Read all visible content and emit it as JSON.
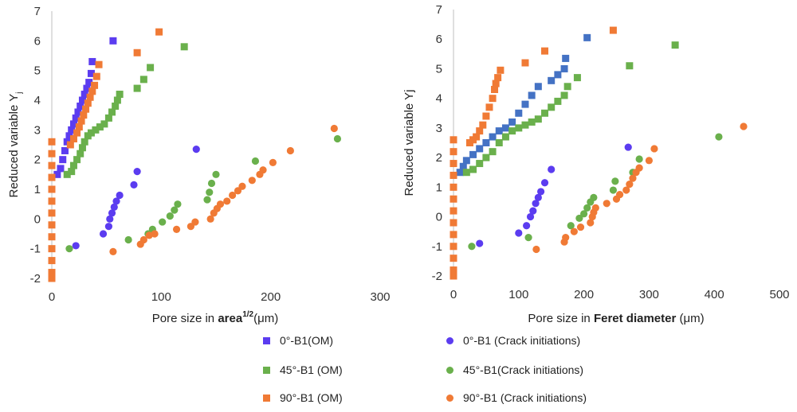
{
  "chart_data": [
    {
      "type": "scatter",
      "xlabel_prefix": "Pore size in ",
      "xlabel_bold": "area",
      "xlabel_sup": "1/2",
      "xlabel_suffix": "(μm)",
      "ylabel_main": "Reduced variable Y",
      "ylabel_sub": "j",
      "xlim": [
        0,
        300
      ],
      "ylim": [
        -2,
        7
      ],
      "xticks": [
        "0",
        "100",
        "200",
        "300"
      ],
      "yticks": [
        "-2",
        "-1",
        "0",
        "1",
        "2",
        "3",
        "4",
        "5",
        "6",
        "7"
      ],
      "series": [
        {
          "name": "0°-B1(OM)",
          "marker": "square",
          "color": "#5b3cf0",
          "points": [
            [
              5,
              1.5
            ],
            [
              8,
              1.7
            ],
            [
              10,
              2.0
            ],
            [
              12,
              2.3
            ],
            [
              14,
              2.6
            ],
            [
              16,
              2.8
            ],
            [
              18,
              3.0
            ],
            [
              20,
              3.2
            ],
            [
              22,
              3.4
            ],
            [
              24,
              3.6
            ],
            [
              26,
              3.8
            ],
            [
              28,
              4.0
            ],
            [
              30,
              4.2
            ],
            [
              32,
              4.4
            ],
            [
              34,
              4.6
            ],
            [
              36,
              4.9
            ],
            [
              37,
              5.3
            ],
            [
              56,
              6.0
            ]
          ]
        },
        {
          "name": "45°-B1 (OM)",
          "marker": "square",
          "color": "#6ab04c",
          "points": [
            [
              14,
              1.5
            ],
            [
              18,
              1.6
            ],
            [
              20,
              1.8
            ],
            [
              23,
              2.0
            ],
            [
              26,
              2.2
            ],
            [
              28,
              2.4
            ],
            [
              30,
              2.6
            ],
            [
              33,
              2.8
            ],
            [
              36,
              2.9
            ],
            [
              40,
              3.0
            ],
            [
              44,
              3.1
            ],
            [
              48,
              3.2
            ],
            [
              52,
              3.4
            ],
            [
              55,
              3.6
            ],
            [
              58,
              3.8
            ],
            [
              60,
              4.0
            ],
            [
              62,
              4.2
            ],
            [
              78,
              4.4
            ],
            [
              84,
              4.7
            ],
            [
              90,
              5.1
            ],
            [
              121,
              5.8
            ]
          ]
        },
        {
          "name": "90°-B1 (OM)",
          "marker": "square",
          "color": "#f07a35",
          "points": [
            [
              17,
              2.5
            ],
            [
              20,
              2.7
            ],
            [
              23,
              2.9
            ],
            [
              25,
              3.1
            ],
            [
              27,
              3.3
            ],
            [
              29,
              3.5
            ],
            [
              31,
              3.7
            ],
            [
              33,
              3.9
            ],
            [
              35,
              4.1
            ],
            [
              37,
              4.3
            ],
            [
              39,
              4.5
            ],
            [
              41,
              4.8
            ],
            [
              43,
              5.2
            ],
            [
              78,
              5.6
            ],
            [
              98,
              6.3
            ],
            [
              0,
              2.6
            ],
            [
              0,
              2.2
            ],
            [
              0,
              1.8
            ],
            [
              0,
              1.4
            ],
            [
              0,
              1.0
            ],
            [
              0,
              0.6
            ],
            [
              0,
              0.2
            ],
            [
              0,
              -0.2
            ],
            [
              0,
              -0.6
            ],
            [
              0,
              -1.0
            ],
            [
              0,
              -1.4
            ],
            [
              0,
              -1.8
            ],
            [
              0,
              -2.0
            ]
          ]
        },
        {
          "name": "0°-B1 (Crack initiations)",
          "marker": "circle",
          "color": "#5b3cf0",
          "points": [
            [
              22,
              -0.9
            ],
            [
              47,
              -0.5
            ],
            [
              52,
              -0.25
            ],
            [
              53,
              0
            ],
            [
              55,
              0.2
            ],
            [
              57,
              0.4
            ],
            [
              59,
              0.6
            ],
            [
              62,
              0.8
            ],
            [
              75,
              1.15
            ],
            [
              78,
              1.6
            ],
            [
              132,
              2.35
            ]
          ]
        },
        {
          "name": "45°-B1(Crack initiations)",
          "marker": "circle",
          "color": "#6ab04c",
          "points": [
            [
              16,
              -1.0
            ],
            [
              70,
              -0.7
            ],
            [
              88,
              -0.5
            ],
            [
              92,
              -0.35
            ],
            [
              101,
              -0.1
            ],
            [
              108,
              0.1
            ],
            [
              112,
              0.3
            ],
            [
              115,
              0.5
            ],
            [
              142,
              0.65
            ],
            [
              144,
              0.9
            ],
            [
              146,
              1.2
            ],
            [
              150,
              1.5
            ],
            [
              186,
              1.95
            ],
            [
              261,
              2.7
            ]
          ]
        },
        {
          "name": "90°-B1 (Crack initiations)",
          "marker": "circle",
          "color": "#f07a35",
          "points": [
            [
              56,
              -1.1
            ],
            [
              81,
              -0.85
            ],
            [
              84,
              -0.7
            ],
            [
              89,
              -0.55
            ],
            [
              94,
              -0.5
            ],
            [
              114,
              -0.35
            ],
            [
              127,
              -0.25
            ],
            [
              131,
              -0.1
            ],
            [
              145,
              0
            ],
            [
              148,
              0.2
            ],
            [
              151,
              0.35
            ],
            [
              154,
              0.5
            ],
            [
              160,
              0.6
            ],
            [
              165,
              0.8
            ],
            [
              170,
              0.95
            ],
            [
              174,
              1.1
            ],
            [
              183,
              1.3
            ],
            [
              190,
              1.5
            ],
            [
              193,
              1.65
            ],
            [
              202,
              1.9
            ],
            [
              218,
              2.3
            ],
            [
              258,
              3.05
            ]
          ]
        }
      ]
    },
    {
      "type": "scatter",
      "xlabel_prefix": "Pore size in ",
      "xlabel_bold": "Feret diameter",
      "xlabel_sup": "",
      "xlabel_suffix": " (μm)",
      "ylabel_main": "Reduced variable Yj",
      "ylabel_sub": "",
      "xlim": [
        0,
        500
      ],
      "ylim": [
        -2,
        7
      ],
      "xticks": [
        "0",
        "100",
        "200",
        "300",
        "400",
        "500"
      ],
      "yticks": [
        "-2",
        "-1",
        "0",
        "1",
        "2",
        "3",
        "4",
        "5",
        "6",
        "7"
      ],
      "series": [
        {
          "name": "0°-B1(OM)",
          "marker": "square",
          "color": "#4472c4",
          "points": [
            [
              10,
              1.5
            ],
            [
              15,
              1.7
            ],
            [
              20,
              1.9
            ],
            [
              30,
              2.1
            ],
            [
              40,
              2.3
            ],
            [
              50,
              2.5
            ],
            [
              60,
              2.7
            ],
            [
              70,
              2.9
            ],
            [
              80,
              3.0
            ],
            [
              90,
              3.2
            ],
            [
              100,
              3.5
            ],
            [
              110,
              3.8
            ],
            [
              120,
              4.1
            ],
            [
              130,
              4.4
            ],
            [
              150,
              4.6
            ],
            [
              160,
              4.8
            ],
            [
              170,
              5.0
            ],
            [
              172,
              5.35
            ],
            [
              205,
              6.05
            ]
          ]
        },
        {
          "name": "45°-B1 (OM)",
          "marker": "square",
          "color": "#6ab04c",
          "points": [
            [
              20,
              1.5
            ],
            [
              30,
              1.6
            ],
            [
              40,
              1.8
            ],
            [
              50,
              2.0
            ],
            [
              60,
              2.2
            ],
            [
              70,
              2.5
            ],
            [
              80,
              2.7
            ],
            [
              90,
              2.9
            ],
            [
              100,
              3.0
            ],
            [
              110,
              3.1
            ],
            [
              120,
              3.2
            ],
            [
              130,
              3.3
            ],
            [
              140,
              3.5
            ],
            [
              150,
              3.7
            ],
            [
              160,
              3.9
            ],
            [
              170,
              4.1
            ],
            [
              175,
              4.4
            ],
            [
              190,
              4.7
            ],
            [
              270,
              5.1
            ],
            [
              340,
              5.8
            ]
          ]
        },
        {
          "name": "90°-B1 (OM)",
          "marker": "square",
          "color": "#f07a35",
          "points": [
            [
              25,
              2.5
            ],
            [
              30,
              2.6
            ],
            [
              35,
              2.7
            ],
            [
              40,
              2.9
            ],
            [
              45,
              3.1
            ],
            [
              50,
              3.4
            ],
            [
              55,
              3.7
            ],
            [
              60,
              4.0
            ],
            [
              63,
              4.3
            ],
            [
              65,
              4.5
            ],
            [
              68,
              4.7
            ],
            [
              72,
              4.95
            ],
            [
              110,
              5.2
            ],
            [
              140,
              5.6
            ],
            [
              245,
              6.3
            ],
            [
              0,
              2.6
            ],
            [
              0,
              2.2
            ],
            [
              0,
              1.8
            ],
            [
              0,
              1.4
            ],
            [
              0,
              1.0
            ],
            [
              0,
              0.6
            ],
            [
              0,
              0.2
            ],
            [
              0,
              -0.2
            ],
            [
              0,
              -0.6
            ],
            [
              0,
              -1.0
            ],
            [
              0,
              -1.4
            ],
            [
              0,
              -1.8
            ],
            [
              0,
              -2.0
            ]
          ]
        },
        {
          "name": "0°-B1 (Crack initiations)",
          "marker": "circle",
          "color": "#5b3cf0",
          "points": [
            [
              40,
              -0.9
            ],
            [
              100,
              -0.55
            ],
            [
              112,
              -0.3
            ],
            [
              118,
              0
            ],
            [
              122,
              0.2
            ],
            [
              126,
              0.45
            ],
            [
              130,
              0.65
            ],
            [
              134,
              0.85
            ],
            [
              140,
              1.15
            ],
            [
              150,
              1.6
            ],
            [
              268,
              2.35
            ]
          ]
        },
        {
          "name": "45°-B1(Crack initiations)",
          "marker": "circle",
          "color": "#6ab04c",
          "points": [
            [
              28,
              -1.0
            ],
            [
              115,
              -0.7
            ],
            [
              180,
              -0.3
            ],
            [
              193,
              -0.05
            ],
            [
              200,
              0.1
            ],
            [
              205,
              0.3
            ],
            [
              210,
              0.5
            ],
            [
              215,
              0.65
            ],
            [
              245,
              0.9
            ],
            [
              248,
              1.2
            ],
            [
              275,
              1.5
            ],
            [
              285,
              1.95
            ],
            [
              407,
              2.7
            ]
          ]
        },
        {
          "name": "90°-B1 (Crack initiations)",
          "marker": "circle",
          "color": "#f07a35",
          "points": [
            [
              127,
              -1.1
            ],
            [
              170,
              -0.85
            ],
            [
              172,
              -0.7
            ],
            [
              185,
              -0.5
            ],
            [
              195,
              -0.35
            ],
            [
              210,
              -0.2
            ],
            [
              213,
              0
            ],
            [
              215,
              0.15
            ],
            [
              218,
              0.3
            ],
            [
              235,
              0.45
            ],
            [
              250,
              0.6
            ],
            [
              255,
              0.75
            ],
            [
              265,
              0.9
            ],
            [
              270,
              1.1
            ],
            [
              275,
              1.3
            ],
            [
              280,
              1.5
            ],
            [
              285,
              1.65
            ],
            [
              300,
              1.9
            ],
            [
              308,
              2.3
            ],
            [
              445,
              3.05
            ]
          ]
        }
      ]
    }
  ],
  "legend": [
    {
      "label": "0°-B1(OM)",
      "marker": "square",
      "color": "#5b3cf0"
    },
    {
      "label": "0°-B1 (Crack initiations)",
      "marker": "circle",
      "color": "#5b3cf0"
    },
    {
      "label": "45°-B1 (OM)",
      "marker": "square",
      "color": "#6ab04c"
    },
    {
      "label": "45°-B1(Crack initiations)",
      "marker": "circle",
      "color": "#6ab04c"
    },
    {
      "label": "90°-B1 (OM)",
      "marker": "square",
      "color": "#f07a35"
    },
    {
      "label": "90°-B1 (Crack initiations)",
      "marker": "circle",
      "color": "#f07a35"
    }
  ]
}
